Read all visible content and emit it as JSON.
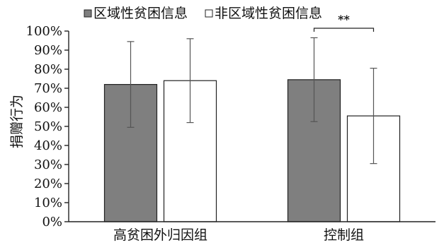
{
  "chart_data": {
    "type": "bar",
    "categories": [
      "高贫困外归因组",
      "控制组"
    ],
    "series": [
      {
        "name": "区域性贫困信息",
        "values": [
          72,
          74.5
        ],
        "errors": [
          22.5,
          22
        ],
        "color": "#7f7f7f"
      },
      {
        "name": "非区域性贫困信息",
        "values": [
          74,
          55.5
        ],
        "errors": [
          22,
          25
        ],
        "color": "#ffffff"
      }
    ],
    "title": "",
    "xlabel": "",
    "ylabel": "捐赠行为",
    "ylim": [
      0,
      100
    ],
    "yticks": [
      "0%",
      "10%",
      "20%",
      "30%",
      "40%",
      "50%",
      "60%",
      "70%",
      "80%",
      "90%",
      "100%"
    ],
    "grid": false,
    "legend_position": "top",
    "annotation": {
      "text": "**",
      "category_index": 1
    }
  }
}
